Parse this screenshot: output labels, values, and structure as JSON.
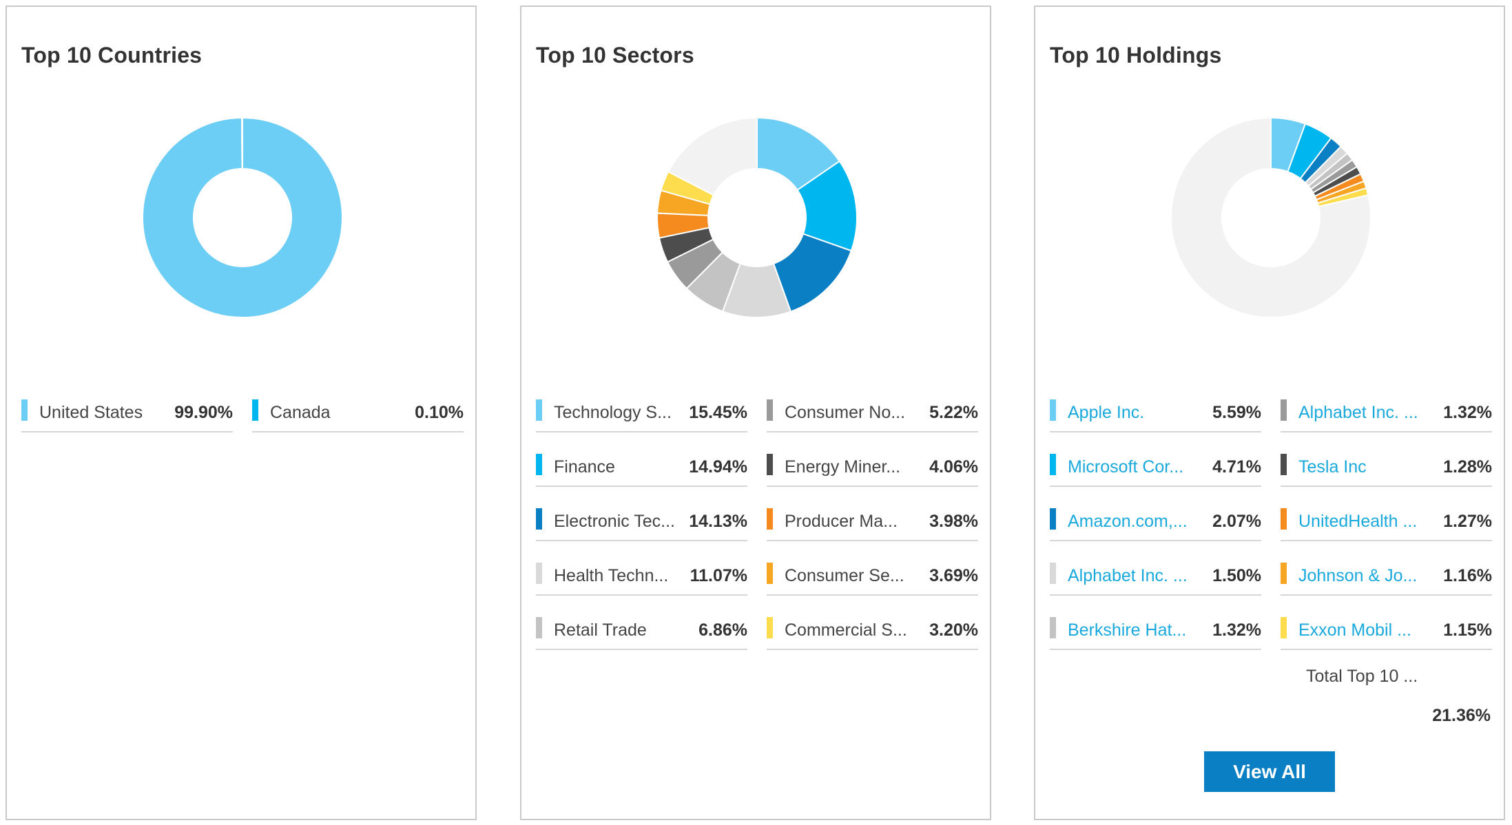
{
  "chart_data": [
    {
      "type": "pie",
      "title": "Top 10 Countries",
      "slices": [
        {
          "label": "United States",
          "value": 99.9,
          "display": "99.90%",
          "color": "#6ccdf5"
        },
        {
          "label": "Canada",
          "value": 0.1,
          "display": "0.10%",
          "color": "#00b6ef"
        }
      ]
    },
    {
      "type": "pie",
      "title": "Top 10 Sectors",
      "slices": [
        {
          "label": "Technology S...",
          "value": 15.45,
          "display": "15.45%",
          "color": "#6ccdf5"
        },
        {
          "label": "Finance",
          "value": 14.94,
          "display": "14.94%",
          "color": "#00b6ef"
        },
        {
          "label": "Electronic Tec...",
          "value": 14.13,
          "display": "14.13%",
          "color": "#0a7fc4"
        },
        {
          "label": "Health Techn...",
          "value": 11.07,
          "display": "11.07%",
          "color": "#d9d9d9"
        },
        {
          "label": "Retail Trade",
          "value": 6.86,
          "display": "6.86%",
          "color": "#c3c3c3"
        },
        {
          "label": "Consumer No...",
          "value": 5.22,
          "display": "5.22%",
          "color": "#9a9a9a"
        },
        {
          "label": "Energy Miner...",
          "value": 4.06,
          "display": "4.06%",
          "color": "#4d4d4d"
        },
        {
          "label": "Producer Ma...",
          "value": 3.98,
          "display": "3.98%",
          "color": "#f58b1f"
        },
        {
          "label": "Consumer Se...",
          "value": 3.69,
          "display": "3.69%",
          "color": "#f6a623"
        },
        {
          "label": "Commercial S...",
          "value": 3.2,
          "display": "3.20%",
          "color": "#fddc4e"
        }
      ],
      "remainder_color": "#f2f2f2"
    },
    {
      "type": "pie",
      "title": "Top 10 Holdings",
      "slices": [
        {
          "label": "Apple Inc.",
          "value": 5.59,
          "display": "5.59%",
          "color": "#6ccdf5"
        },
        {
          "label": "Microsoft Cor...",
          "value": 4.71,
          "display": "4.71%",
          "color": "#00b6ef"
        },
        {
          "label": "Amazon.com,...",
          "value": 2.07,
          "display": "2.07%",
          "color": "#0a7fc4"
        },
        {
          "label": "Alphabet Inc. ...",
          "value": 1.5,
          "display": "1.50%",
          "color": "#d9d9d9"
        },
        {
          "label": "Berkshire Hat...",
          "value": 1.32,
          "display": "1.32%",
          "color": "#c3c3c3"
        },
        {
          "label": "Alphabet Inc. ...",
          "value": 1.32,
          "display": "1.32%",
          "color": "#9a9a9a"
        },
        {
          "label": "Tesla Inc",
          "value": 1.28,
          "display": "1.28%",
          "color": "#4d4d4d"
        },
        {
          "label": "UnitedHealth ...",
          "value": 1.27,
          "display": "1.27%",
          "color": "#f58b1f"
        },
        {
          "label": "Johnson & Jo...",
          "value": 1.16,
          "display": "1.16%",
          "color": "#f6a623"
        },
        {
          "label": "Exxon Mobil ...",
          "value": 1.15,
          "display": "1.15%",
          "color": "#fddc4e"
        }
      ],
      "remainder_color": "#f2f2f2"
    }
  ],
  "holdings_total": {
    "label": "Total Top 10 ...",
    "value": "21.36%"
  },
  "view_all_label": "View All"
}
